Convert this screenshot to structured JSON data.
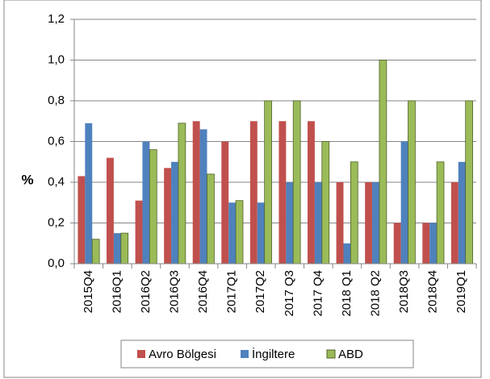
{
  "chart_data": {
    "type": "bar",
    "y_label": "%",
    "categories": [
      "2015Q4",
      "2016Q1",
      "2016Q2",
      "2016Q3",
      "2016Q4",
      "2017Q1",
      "2017Q2",
      "2017 Q3",
      "2017 Q4",
      "2018 Q1",
      "2018 Q2",
      "2018Q3",
      "2018Q4",
      "2019Q1"
    ],
    "series": [
      {
        "name": "Avro Bölgesi",
        "color": "#c0504d",
        "values": [
          0.43,
          0.52,
          0.31,
          0.47,
          0.7,
          0.6,
          0.7,
          0.7,
          0.7,
          0.4,
          0.4,
          0.2,
          0.2,
          0.4
        ]
      },
      {
        "name": "İngiltere",
        "color": "#4f81bd",
        "values": [
          0.69,
          0.15,
          0.6,
          0.5,
          0.66,
          0.3,
          0.3,
          0.4,
          0.4,
          0.1,
          0.4,
          0.6,
          0.2,
          0.5
        ]
      },
      {
        "name": "ABD",
        "color": "#9bbb59",
        "values": [
          0.12,
          0.15,
          0.56,
          0.69,
          0.44,
          0.31,
          0.8,
          0.8,
          0.6,
          0.5,
          1.0,
          0.8,
          0.5,
          0.8
        ]
      }
    ],
    "ylim": [
      0,
      1.2
    ],
    "yticks": [
      {
        "value": 0,
        "label": "0,0"
      },
      {
        "value": 0.2,
        "label": "0,2"
      },
      {
        "value": 0.4,
        "label": "0,4"
      },
      {
        "value": 0.6,
        "label": "0,6"
      },
      {
        "value": 0.8,
        "label": "0,8"
      },
      {
        "value": 1.0,
        "label": "1,0"
      },
      {
        "value": 1.2,
        "label": "1,2"
      }
    ],
    "grid": true,
    "legend": "bottom"
  }
}
